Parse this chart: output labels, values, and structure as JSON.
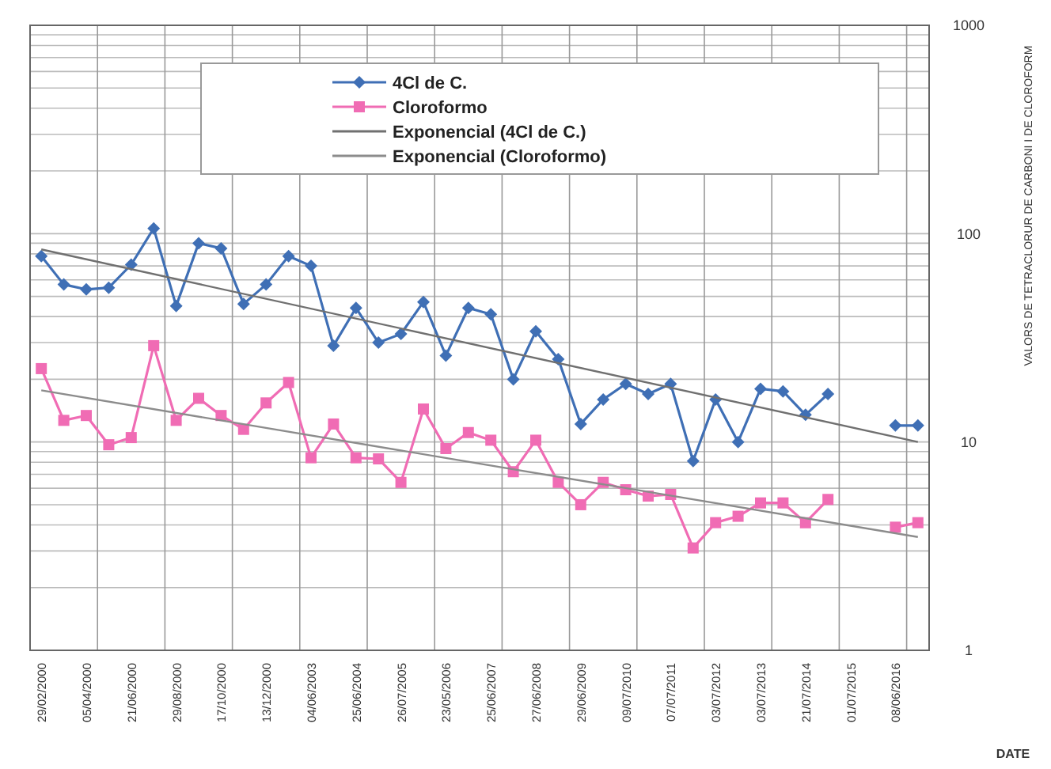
{
  "chart_data": {
    "type": "line",
    "ylabel": "VALORS DE TETRACLORUR DE CARBONI I DE CLOROFORM",
    "xlabel": "DATE",
    "categories": [
      "29/02/2000",
      null,
      "05/04/2000",
      null,
      "21/06/2000",
      null,
      "29/08/2000",
      null,
      "17/10/2000",
      null,
      "13/12/2000",
      null,
      "04/06/2003",
      null,
      "25/06/2004",
      null,
      "26/07/2005",
      null,
      "23/05/2006",
      null,
      "25/06/2007",
      null,
      "27/06/2008",
      null,
      "29/06/2009",
      null,
      "09/07/2010",
      null,
      "07/07/2011",
      null,
      "03/07/2012",
      null,
      "03/07/2013",
      null,
      "21/07/2014",
      null,
      "01/07/2015",
      null,
      "08/06/2016",
      null
    ],
    "series": [
      {
        "name": "4Cl de C.",
        "color": "#3f6fb5",
        "marker": "diamond",
        "values": [
          78,
          57,
          54,
          55,
          71,
          106,
          45,
          90,
          85,
          46,
          57,
          78,
          70,
          29,
          44,
          30,
          33,
          47,
          26,
          44,
          41,
          20,
          34,
          25,
          12.2,
          16,
          19,
          17,
          19,
          8.1,
          16,
          10,
          18,
          17.5,
          13.5,
          17,
          null,
          null,
          12,
          12
        ]
      },
      {
        "name": "Cloroformo",
        "color": "#f06cb4",
        "marker": "square",
        "values": [
          22.5,
          12.7,
          13.4,
          9.7,
          10.5,
          29,
          12.7,
          16.2,
          13.4,
          11.5,
          15.4,
          19.3,
          8.4,
          12.2,
          8.4,
          8.3,
          6.4,
          14.4,
          9.3,
          11.1,
          10.2,
          7.2,
          10.2,
          6.4,
          5,
          6.4,
          5.9,
          5.5,
          5.6,
          3.1,
          4.1,
          4.4,
          5.1,
          5.1,
          4.1,
          5.3,
          null,
          null,
          3.9,
          4.1
        ]
      },
      {
        "name": "Exponencial (4Cl de C.)",
        "color": "#707070",
        "marker": "none",
        "values": [
          84,
          null,
          null,
          null,
          null,
          null,
          null,
          null,
          null,
          null,
          null,
          null,
          null,
          null,
          null,
          null,
          null,
          null,
          null,
          null,
          null,
          null,
          null,
          null,
          null,
          null,
          null,
          null,
          null,
          null,
          null,
          null,
          null,
          null,
          null,
          null,
          null,
          null,
          null,
          10
        ]
      },
      {
        "name": "Exponencial (Cloroformo)",
        "color": "#8c8c8c",
        "marker": "none",
        "values": [
          17.7,
          null,
          null,
          null,
          null,
          null,
          null,
          null,
          null,
          null,
          null,
          null,
          null,
          null,
          null,
          null,
          null,
          null,
          null,
          null,
          null,
          null,
          null,
          null,
          null,
          null,
          null,
          null,
          null,
          null,
          null,
          null,
          null,
          null,
          null,
          null,
          null,
          null,
          null,
          3.5
        ]
      }
    ],
    "log": true,
    "ylim": [
      1,
      1000
    ],
    "yticks": [
      1,
      10,
      100,
      1000
    ],
    "grid": true,
    "legend": "top"
  }
}
